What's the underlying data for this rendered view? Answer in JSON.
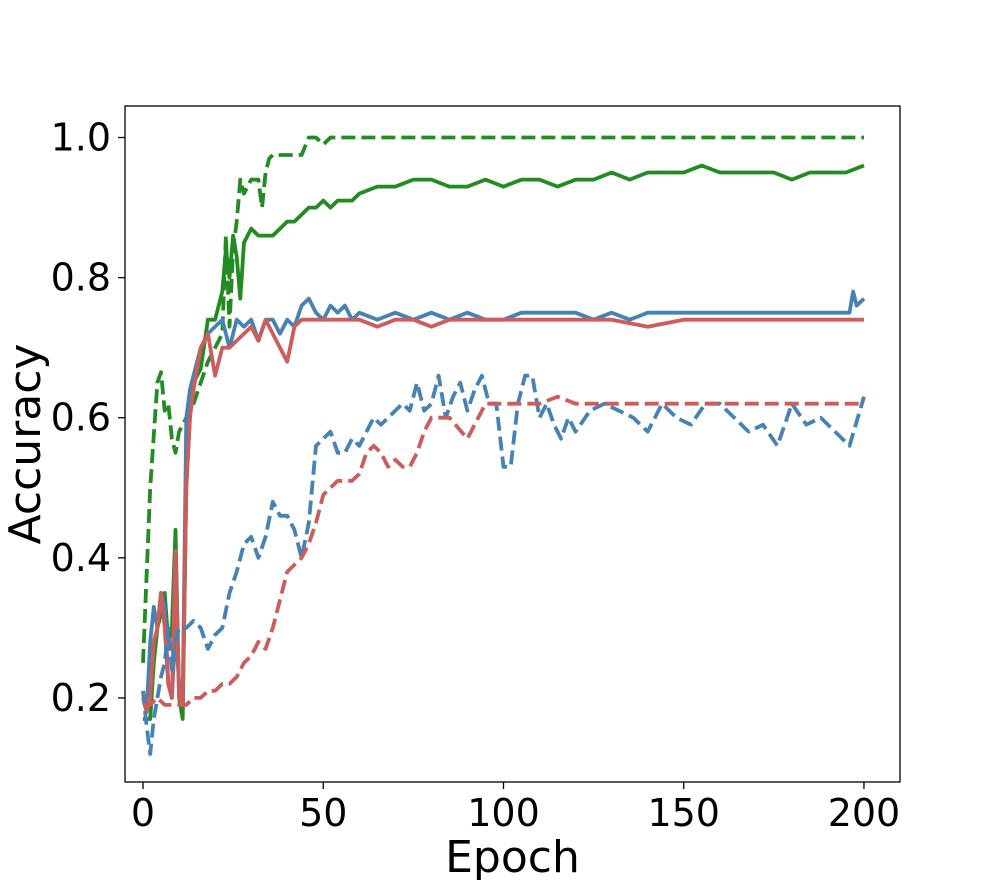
{
  "chart_data": {
    "type": "line",
    "title": "",
    "xlabel": "Epoch",
    "ylabel": "Accuracy",
    "xlim": [
      -5,
      210
    ],
    "ylim": [
      0.08,
      1.045
    ],
    "x_ticks": [
      0,
      50,
      100,
      150,
      200
    ],
    "y_ticks": [
      0.2,
      0.4,
      0.6,
      0.8,
      1.0
    ],
    "y_tick_labels": [
      "0.2",
      "0.4",
      "0.6",
      "0.8",
      "1.0"
    ],
    "grid": false,
    "legend": "none",
    "series": [
      {
        "color": "#228B22",
        "dash": "dashed",
        "x": [
          0,
          2,
          4,
          5,
          6,
          7,
          8,
          9,
          10,
          12,
          14,
          16,
          18,
          20,
          22,
          23,
          24,
          25,
          26,
          27,
          28,
          30,
          32,
          33,
          34,
          35,
          36,
          38,
          40,
          42,
          44,
          46,
          48,
          50,
          52,
          54,
          60,
          100,
          150,
          200
        ],
        "y": [
          0.25,
          0.5,
          0.65,
          0.665,
          0.61,
          0.62,
          0.57,
          0.55,
          0.58,
          0.6,
          0.62,
          0.65,
          0.68,
          0.7,
          0.72,
          0.86,
          0.73,
          0.84,
          0.88,
          0.94,
          0.92,
          0.94,
          0.94,
          0.9,
          0.95,
          0.97,
          0.975,
          0.975,
          0.975,
          0.975,
          0.975,
          1.0,
          1.0,
          0.99,
          1.0,
          1.0,
          1.0,
          1.0,
          1.0,
          1.0
        ]
      },
      {
        "color": "#228B22",
        "dash": "solid",
        "x": [
          0,
          2,
          3,
          4,
          5,
          6,
          7,
          8,
          9,
          10,
          11,
          12,
          13,
          14,
          16,
          18,
          20,
          22,
          23,
          24,
          25,
          26,
          27,
          28,
          30,
          32,
          34,
          36,
          38,
          40,
          42,
          44,
          46,
          48,
          50,
          52,
          54,
          56,
          58,
          60,
          65,
          70,
          75,
          80,
          85,
          90,
          95,
          100,
          105,
          110,
          115,
          120,
          125,
          130,
          135,
          140,
          145,
          150,
          155,
          160,
          165,
          170,
          175,
          180,
          185,
          190,
          195,
          200
        ],
        "y": [
          0.17,
          0.17,
          0.25,
          0.3,
          0.32,
          0.35,
          0.28,
          0.3,
          0.44,
          0.2,
          0.17,
          0.5,
          0.6,
          0.65,
          0.67,
          0.74,
          0.74,
          0.78,
          0.84,
          0.8,
          0.86,
          0.83,
          0.77,
          0.85,
          0.87,
          0.86,
          0.86,
          0.86,
          0.87,
          0.88,
          0.88,
          0.89,
          0.9,
          0.9,
          0.91,
          0.9,
          0.91,
          0.91,
          0.91,
          0.92,
          0.93,
          0.93,
          0.94,
          0.94,
          0.93,
          0.93,
          0.94,
          0.93,
          0.94,
          0.94,
          0.93,
          0.94,
          0.94,
          0.95,
          0.94,
          0.95,
          0.95,
          0.95,
          0.96,
          0.95,
          0.95,
          0.95,
          0.95,
          0.94,
          0.95,
          0.95,
          0.95,
          0.96
        ]
      },
      {
        "color": "#4682B4",
        "dash": "solid",
        "x": [
          0,
          1,
          2,
          3,
          4,
          5,
          6,
          7,
          8,
          9,
          10,
          11,
          12,
          13,
          14,
          16,
          18,
          20,
          22,
          24,
          26,
          28,
          30,
          32,
          34,
          36,
          38,
          40,
          42,
          44,
          46,
          48,
          50,
          52,
          54,
          56,
          58,
          60,
          65,
          70,
          75,
          80,
          85,
          90,
          95,
          100,
          105,
          110,
          115,
          120,
          125,
          130,
          135,
          140,
          145,
          150,
          155,
          160,
          165,
          170,
          175,
          180,
          185,
          190,
          195,
          196,
          197,
          198,
          200
        ],
        "y": [
          0.2,
          0.18,
          0.28,
          0.33,
          0.3,
          0.35,
          0.33,
          0.22,
          0.2,
          0.3,
          0.22,
          0.2,
          0.6,
          0.64,
          0.66,
          0.7,
          0.72,
          0.73,
          0.74,
          0.7,
          0.74,
          0.73,
          0.74,
          0.71,
          0.74,
          0.74,
          0.72,
          0.74,
          0.73,
          0.76,
          0.77,
          0.75,
          0.74,
          0.76,
          0.75,
          0.76,
          0.74,
          0.75,
          0.74,
          0.75,
          0.74,
          0.75,
          0.74,
          0.75,
          0.74,
          0.74,
          0.75,
          0.75,
          0.75,
          0.75,
          0.74,
          0.75,
          0.74,
          0.75,
          0.75,
          0.75,
          0.75,
          0.75,
          0.75,
          0.75,
          0.75,
          0.75,
          0.75,
          0.75,
          0.75,
          0.75,
          0.78,
          0.76,
          0.77
        ]
      },
      {
        "color": "#CD5C5C",
        "dash": "solid",
        "x": [
          0,
          1,
          2,
          3,
          4,
          5,
          6,
          7,
          8,
          9,
          10,
          11,
          12,
          13,
          14,
          16,
          18,
          20,
          22,
          24,
          26,
          28,
          30,
          32,
          34,
          36,
          38,
          40,
          42,
          44,
          46,
          48,
          50,
          55,
          60,
          65,
          70,
          75,
          80,
          85,
          90,
          100,
          110,
          120,
          130,
          140,
          150,
          160,
          170,
          180,
          190,
          198,
          200
        ],
        "y": [
          0.21,
          0.18,
          0.2,
          0.28,
          0.3,
          0.35,
          0.3,
          0.22,
          0.2,
          0.41,
          0.2,
          0.19,
          0.5,
          0.6,
          0.64,
          0.7,
          0.72,
          0.66,
          0.7,
          0.7,
          0.71,
          0.72,
          0.73,
          0.71,
          0.74,
          0.72,
          0.7,
          0.68,
          0.73,
          0.74,
          0.74,
          0.74,
          0.74,
          0.74,
          0.74,
          0.73,
          0.74,
          0.74,
          0.73,
          0.74,
          0.74,
          0.74,
          0.74,
          0.74,
          0.74,
          0.73,
          0.74,
          0.74,
          0.74,
          0.74,
          0.74,
          0.74,
          0.74
        ]
      },
      {
        "color": "#4682B4",
        "dash": "dashed",
        "x": [
          0,
          1,
          2,
          3,
          4,
          5,
          6,
          7,
          8,
          9,
          10,
          12,
          14,
          16,
          18,
          20,
          22,
          24,
          26,
          28,
          30,
          32,
          34,
          36,
          38,
          40,
          42,
          44,
          46,
          48,
          50,
          52,
          54,
          56,
          58,
          60,
          62,
          64,
          66,
          68,
          70,
          72,
          74,
          76,
          78,
          80,
          82,
          84,
          86,
          88,
          90,
          92,
          94,
          96,
          98,
          100,
          102,
          104,
          106,
          108,
          110,
          112,
          114,
          116,
          118,
          120,
          124,
          128,
          132,
          136,
          140,
          144,
          148,
          152,
          156,
          160,
          164,
          168,
          172,
          176,
          180,
          184,
          188,
          192,
          196,
          200
        ],
        "y": [
          0.21,
          0.16,
          0.12,
          0.17,
          0.2,
          0.23,
          0.25,
          0.3,
          0.24,
          0.28,
          0.3,
          0.3,
          0.31,
          0.3,
          0.27,
          0.29,
          0.3,
          0.35,
          0.38,
          0.42,
          0.43,
          0.4,
          0.43,
          0.48,
          0.46,
          0.46,
          0.44,
          0.4,
          0.45,
          0.56,
          0.57,
          0.58,
          0.55,
          0.55,
          0.57,
          0.56,
          0.58,
          0.6,
          0.59,
          0.6,
          0.61,
          0.62,
          0.61,
          0.65,
          0.61,
          0.62,
          0.66,
          0.6,
          0.63,
          0.65,
          0.61,
          0.64,
          0.66,
          0.62,
          0.62,
          0.53,
          0.53,
          0.62,
          0.66,
          0.66,
          0.6,
          0.62,
          0.59,
          0.57,
          0.6,
          0.58,
          0.61,
          0.62,
          0.61,
          0.6,
          0.58,
          0.62,
          0.6,
          0.59,
          0.62,
          0.62,
          0.6,
          0.58,
          0.59,
          0.56,
          0.62,
          0.59,
          0.6,
          0.58,
          0.56,
          0.63
        ]
      },
      {
        "color": "#CD5C5C",
        "dash": "dashed",
        "x": [
          0,
          2,
          4,
          6,
          8,
          10,
          12,
          14,
          16,
          18,
          20,
          22,
          24,
          26,
          28,
          30,
          32,
          34,
          36,
          38,
          40,
          42,
          44,
          46,
          48,
          50,
          52,
          54,
          56,
          58,
          60,
          62,
          64,
          66,
          68,
          70,
          72,
          74,
          76,
          78,
          80,
          85,
          90,
          95,
          100,
          110,
          115,
          120,
          130,
          140,
          150,
          160,
          170,
          180,
          190,
          200
        ],
        "y": [
          0.19,
          0.19,
          0.2,
          0.19,
          0.19,
          0.19,
          0.19,
          0.2,
          0.2,
          0.21,
          0.21,
          0.22,
          0.22,
          0.23,
          0.25,
          0.26,
          0.28,
          0.27,
          0.3,
          0.34,
          0.38,
          0.39,
          0.4,
          0.42,
          0.45,
          0.49,
          0.5,
          0.51,
          0.51,
          0.51,
          0.52,
          0.55,
          0.56,
          0.55,
          0.53,
          0.54,
          0.53,
          0.53,
          0.55,
          0.58,
          0.6,
          0.6,
          0.57,
          0.62,
          0.62,
          0.62,
          0.63,
          0.62,
          0.62,
          0.62,
          0.62,
          0.62,
          0.62,
          0.62,
          0.62,
          0.62
        ]
      }
    ]
  }
}
